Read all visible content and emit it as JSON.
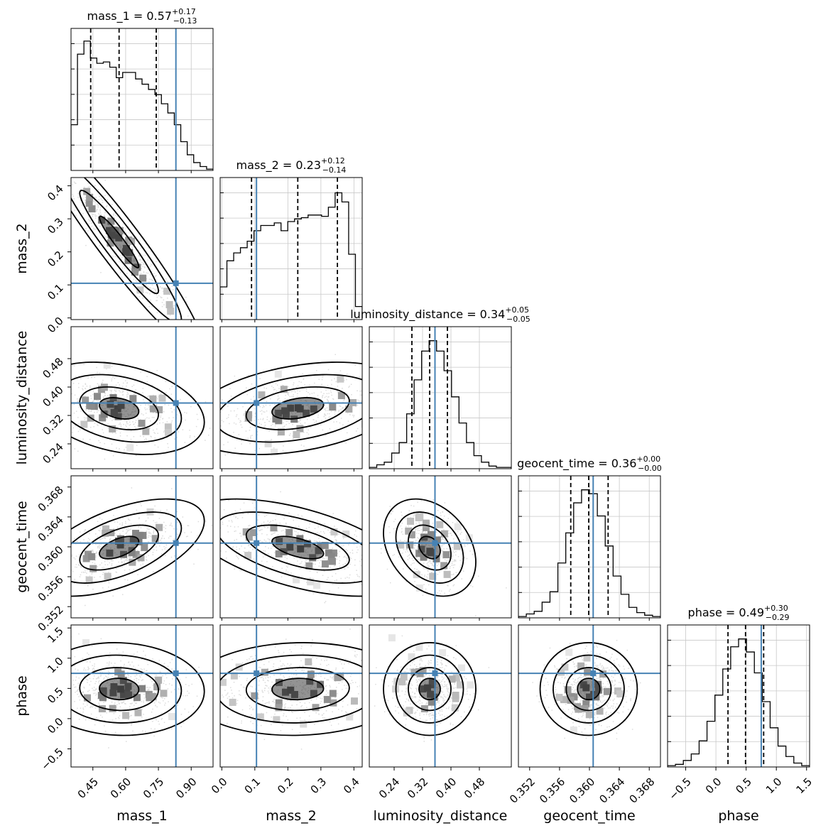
{
  "chart_data": {
    "type": "corner",
    "parameters": [
      "mass_1",
      "mass_2",
      "luminosity_distance",
      "geocent_time",
      "phase"
    ],
    "truths": [
      0.83,
      0.105,
      0.355,
      0.3605,
      0.75
    ],
    "titles": [
      {
        "prefix": "mass_1 = 0.57",
        "plus": "+0.17",
        "minus": "−0.13"
      },
      {
        "prefix": "mass_2 = 0.23",
        "plus": "+0.12",
        "minus": "−0.14"
      },
      {
        "prefix": "luminosity_distance = 0.34",
        "plus": "+0.05",
        "minus": "−0.05"
      },
      {
        "prefix": "geocent_time = 0.36",
        "plus": "+0.00",
        "minus": "−0.00"
      },
      {
        "prefix": "phase = 0.49",
        "plus": "+0.30",
        "minus": "−0.29"
      }
    ],
    "ranges": [
      [
        0.35,
        1.0
      ],
      [
        -0.005,
        0.425
      ],
      [
        0.17,
        0.57
      ],
      [
        0.3505,
        0.3695
      ],
      [
        -0.8,
        1.55
      ]
    ],
    "ticks": [
      [
        "0.45",
        "0.60",
        "0.75",
        "0.90"
      ],
      [
        "0.0",
        "0.1",
        "0.2",
        "0.3",
        "0.4"
      ],
      [
        "0.24",
        "0.32",
        "0.40",
        "0.48"
      ],
      [
        "0.352",
        "0.356",
        "0.360",
        "0.364",
        "0.368"
      ],
      [
        "−0.5",
        "0.0",
        "0.5",
        "1.0",
        "1.5"
      ]
    ],
    "quantiles": [
      [
        0.44,
        0.57,
        0.74
      ],
      [
        0.09,
        0.23,
        0.35
      ],
      [
        0.29,
        0.34,
        0.39
      ],
      [
        0.3575,
        0.3599,
        0.3625
      ],
      [
        0.2,
        0.49,
        0.79
      ]
    ],
    "histograms": [
      [
        0.35,
        0.89,
        0.99,
        0.86,
        0.82,
        0.83,
        0.79,
        0.71,
        0.75,
        0.75,
        0.7,
        0.66,
        0.62,
        0.58,
        0.51,
        0.44,
        0.35,
        0.22,
        0.12,
        0.06,
        0.03,
        0.01
      ],
      [
        0.25,
        0.45,
        0.51,
        0.55,
        0.6,
        0.68,
        0.72,
        0.72,
        0.74,
        0.68,
        0.75,
        0.77,
        0.78,
        0.8,
        0.8,
        0.79,
        0.86,
        0.97,
        0.9,
        0.5,
        0.1
      ],
      [
        0.01,
        0.03,
        0.05,
        0.12,
        0.2,
        0.42,
        0.68,
        0.9,
        0.98,
        0.9,
        0.75,
        0.55,
        0.35,
        0.2,
        0.1,
        0.05,
        0.02,
        0.01,
        0.01
      ],
      [
        0.01,
        0.03,
        0.05,
        0.12,
        0.2,
        0.42,
        0.65,
        0.88,
        0.98,
        0.95,
        0.78,
        0.55,
        0.32,
        0.18,
        0.08,
        0.04,
        0.02,
        0.01
      ],
      [
        0.01,
        0.02,
        0.05,
        0.1,
        0.2,
        0.35,
        0.55,
        0.75,
        0.92,
        0.98,
        0.88,
        0.72,
        0.5,
        0.3,
        0.16,
        0.08,
        0.03,
        0.01
      ]
    ],
    "correlations": [
      [
        1,
        -0.95,
        -0.3,
        0.55,
        -0.05
      ],
      [
        -0.95,
        1,
        0.35,
        -0.55,
        0.05
      ],
      [
        -0.3,
        0.35,
        1,
        -0.3,
        0.0
      ],
      [
        0.55,
        -0.55,
        -0.3,
        1,
        0.0
      ],
      [
        -0.05,
        0.05,
        0.0,
        0.0,
        1
      ]
    ],
    "axis_labels": [
      "mass_1",
      "mass_2",
      "luminosity_distance",
      "geocent_time",
      "phase"
    ],
    "colors": {
      "truth": "#4682b4",
      "line": "#000000",
      "grid": "#b0b0b0"
    }
  }
}
